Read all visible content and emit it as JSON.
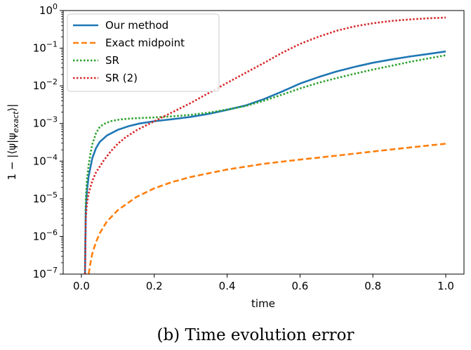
{
  "caption": "(b) Time evolution error",
  "chart_data": {
    "type": "line",
    "xlabel": "time",
    "ylabel": "1 − |⟨ψ|ψexact⟩|",
    "ylabel_main": "1 − |⟨ψ|ψ",
    "ylabel_sub": "exact",
    "ylabel_end": "⟩|",
    "xlim": [
      -0.05,
      1.05
    ],
    "ylim": [
      1e-07,
      1
    ],
    "yscale": "log",
    "grid": false,
    "legend_position": "top-left",
    "x_ticks": [
      0.0,
      0.2,
      0.4,
      0.6,
      0.8,
      1.0
    ],
    "x_tick_labels": [
      "0.0",
      "0.2",
      "0.4",
      "0.6",
      "0.8",
      "1.0"
    ],
    "y_ticks": [
      1e-07,
      1e-06,
      1e-05,
      0.0001,
      0.001,
      0.01,
      0.1,
      1
    ],
    "y_tick_labels": [
      {
        "base": "10",
        "exp": "−7"
      },
      {
        "base": "10",
        "exp": "−6"
      },
      {
        "base": "10",
        "exp": "−5"
      },
      {
        "base": "10",
        "exp": "−4"
      },
      {
        "base": "10",
        "exp": "−3"
      },
      {
        "base": "10",
        "exp": "−2"
      },
      {
        "base": "10",
        "exp": "−1"
      },
      {
        "base": "10",
        "exp": "0"
      }
    ],
    "series": [
      {
        "name": "Our method",
        "color": "#1f77b4",
        "style": "solid",
        "x": [
          0.01,
          0.012,
          0.015,
          0.02,
          0.03,
          0.04,
          0.05,
          0.07,
          0.1,
          0.13,
          0.16,
          0.2,
          0.25,
          0.3,
          0.35,
          0.4,
          0.45,
          0.5,
          0.55,
          0.6,
          0.65,
          0.7,
          0.75,
          0.8,
          0.85,
          0.9,
          0.95,
          1.0
        ],
        "y": [
          1e-07,
          5e-06,
          1.5e-05,
          4e-05,
          0.00012,
          0.00022,
          0.00032,
          0.00048,
          0.00068,
          0.00085,
          0.001,
          0.00115,
          0.0013,
          0.0015,
          0.0018,
          0.0023,
          0.003,
          0.0044,
          0.007,
          0.0115,
          0.017,
          0.024,
          0.032,
          0.041,
          0.05,
          0.06,
          0.07,
          0.082
        ]
      },
      {
        "name": "Exact midpoint",
        "color": "#ff7f0e",
        "style": "dashed",
        "x": [
          0.02,
          0.025,
          0.03,
          0.04,
          0.05,
          0.07,
          0.1,
          0.15,
          0.2,
          0.25,
          0.3,
          0.4,
          0.5,
          0.6,
          0.7,
          0.8,
          0.9,
          1.0
        ],
        "y": [
          1e-07,
          2e-07,
          3.5e-07,
          7e-07,
          1.2e-06,
          2.5e-06,
          5e-06,
          1.1e-05,
          1.9e-05,
          2.8e-05,
          3.8e-05,
          6e-05,
          8.5e-05,
          0.00011,
          0.00014,
          0.00018,
          0.00023,
          0.00029
        ]
      },
      {
        "name": "SR",
        "color": "#2ca02c",
        "style": "dotted",
        "x": [
          0.01,
          0.012,
          0.015,
          0.02,
          0.025,
          0.03,
          0.04,
          0.05,
          0.06,
          0.08,
          0.1,
          0.12,
          0.15,
          0.2,
          0.25,
          0.3,
          0.35,
          0.4,
          0.45,
          0.5,
          0.55,
          0.6,
          0.65,
          0.7,
          0.75,
          0.8,
          0.85,
          0.9,
          0.95,
          1.0
        ],
        "y": [
          1e-07,
          1e-05,
          3e-05,
          8e-05,
          0.00016,
          0.00028,
          0.00055,
          0.0008,
          0.00095,
          0.00115,
          0.00125,
          0.00132,
          0.00138,
          0.00145,
          0.00155,
          0.0017,
          0.00195,
          0.00235,
          0.0029,
          0.004,
          0.0058,
          0.0085,
          0.012,
          0.016,
          0.021,
          0.027,
          0.034,
          0.043,
          0.053,
          0.065
        ]
      },
      {
        "name": "SR (2)",
        "color": "#d62728",
        "style": "dotted",
        "x": [
          0.01,
          0.012,
          0.015,
          0.02,
          0.03,
          0.04,
          0.06,
          0.08,
          0.1,
          0.12,
          0.15,
          0.2,
          0.25,
          0.3,
          0.35,
          0.4,
          0.45,
          0.5,
          0.55,
          0.6,
          0.65,
          0.7,
          0.75,
          0.8,
          0.85,
          0.9,
          0.95,
          1.0
        ],
        "y": [
          1e-07,
          3e-06,
          7e-06,
          1.4e-05,
          3e-05,
          5e-05,
          0.0001,
          0.00018,
          0.00029,
          0.00042,
          0.00065,
          0.00115,
          0.002,
          0.0035,
          0.0065,
          0.012,
          0.022,
          0.04,
          0.075,
          0.13,
          0.2,
          0.29,
          0.38,
          0.46,
          0.53,
          0.58,
          0.62,
          0.65
        ]
      }
    ]
  }
}
